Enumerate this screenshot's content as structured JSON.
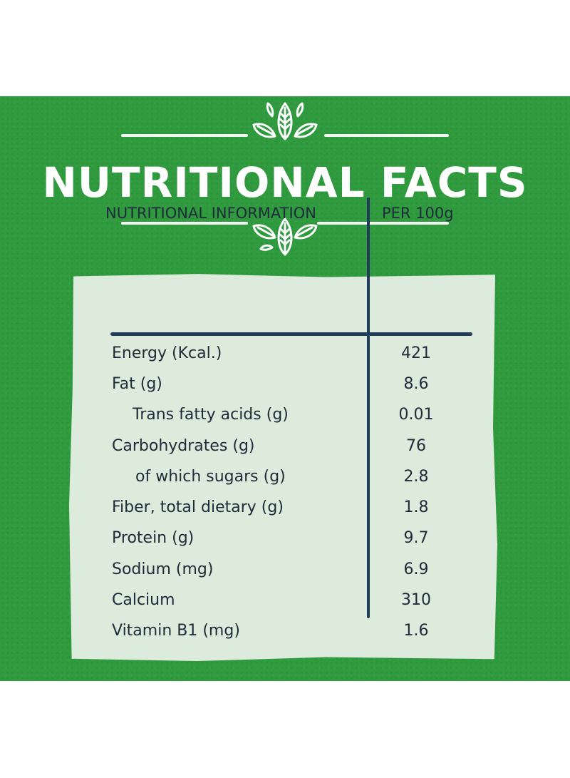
{
  "title": "NUTRITIONAL FACTS",
  "table": {
    "header_label": "NUTRITIONAL INFORMATION",
    "header_value": "PER 100g",
    "rows": [
      {
        "label": "Energy (Kcal.)",
        "value": "421",
        "indent": false
      },
      {
        "label": "Fat (g)",
        "value": "8.6",
        "indent": false
      },
      {
        "label": "Trans fatty acids (g)",
        "value": "0.01",
        "indent": true
      },
      {
        "label": "Carbohydrates (g)",
        "value": "76",
        "indent": false
      },
      {
        "label": "of which sugars (g)",
        "value": "2.8",
        "indent": true
      },
      {
        "label": "Fiber, total dietary (g)",
        "value": "1.8",
        "indent": false
      },
      {
        "label": "Protein (g)",
        "value": "9.7",
        "indent": false
      },
      {
        "label": "Sodium (mg)",
        "value": "6.9",
        "indent": false
      },
      {
        "label": "Calcium",
        "value": "310",
        "indent": false
      },
      {
        "label": "Vitamin B1 (mg)",
        "value": "1.6",
        "indent": false
      }
    ]
  },
  "colors": {
    "background": "#2f9a3e",
    "card": "#dcebdc",
    "ink": "#1f3d5b",
    "title": "#ffffff"
  },
  "icons": {
    "top_ornament": "leaves-icon",
    "bottom_ornament": "leaves-icon"
  }
}
